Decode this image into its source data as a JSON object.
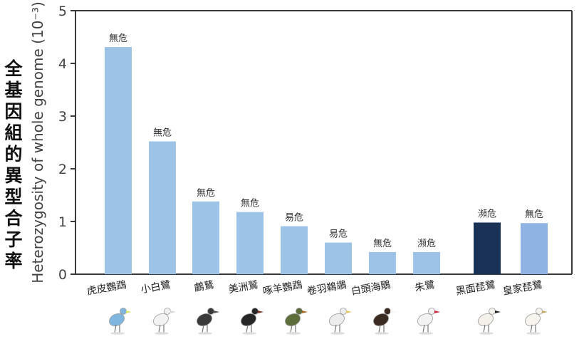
{
  "chart_data": {
    "type": "bar",
    "ylabel": "Heterozygosity of whole genome (10⁻³)",
    "ylabel_zh": "全基因組的異型合子率",
    "ylim": [
      0,
      5
    ],
    "yticks": [
      "0",
      "1",
      "2",
      "3",
      "4",
      "5"
    ],
    "grid": false,
    "categories": [
      "虎皮鸚鵡",
      "小白鷺",
      "鸕鶿",
      "美洲鷲",
      "啄羊鸚鵡",
      "卷羽鵜鶘",
      "白頭海鵰",
      "朱鷺",
      "黑面琵鷺",
      "皇家琵鷺"
    ],
    "values": [
      4.31,
      2.52,
      1.38,
      1.18,
      0.91,
      0.6,
      0.42,
      0.42,
      0.98,
      0.97
    ],
    "status_labels": [
      "無危",
      "無危",
      "無危",
      "無危",
      "易危",
      "易危",
      "無危",
      "瀕危",
      "瀕危",
      "無危"
    ],
    "bar_colors": [
      "#9dc3e6",
      "#9dc3e6",
      "#9dc3e6",
      "#9dc3e6",
      "#9dc3e6",
      "#9dc3e6",
      "#9dc3e6",
      "#9dc3e6",
      "#1a3258",
      "#8fb4e3"
    ],
    "bird_icons": [
      "budgerigar-icon",
      "little-egret-icon",
      "cormorant-icon",
      "vulture-icon",
      "kea-icon",
      "pelican-icon",
      "bald-eagle-icon",
      "crested-ibis-icon",
      "black-faced-spoonbill-icon",
      "royal-spoonbill-icon"
    ]
  }
}
